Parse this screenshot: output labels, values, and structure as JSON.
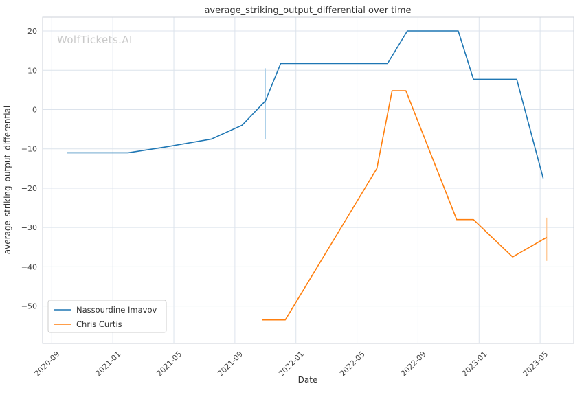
{
  "watermark": "WolfTickets.AI",
  "chart_data": {
    "type": "line",
    "title": "average_striking_output_differential over time",
    "xlabel": "Date",
    "ylabel": "average_striking_output_differential",
    "legend_position": "lower left",
    "grid": true,
    "colors": {
      "grid": "#dce3ec",
      "border": "#ccd2da",
      "tick_text": "#444444",
      "text": "#333333",
      "watermark": "#c9c9c9"
    },
    "x_ticks": [
      "2020-09",
      "2021-01",
      "2021-05",
      "2021-09",
      "2022-01",
      "2022-05",
      "2022-09",
      "2023-01",
      "2023-05"
    ],
    "y_ticks": [
      20,
      10,
      0,
      -10,
      -20,
      -30,
      -40,
      -50
    ],
    "ylim": [
      -59.5,
      23.5
    ],
    "xlim": [
      "2020-08-13",
      "2023-07-07"
    ],
    "series": [
      {
        "name": "Nassourdine Imavov",
        "color": "#1f77b4",
        "points": [
          [
            "2020-10-01",
            -11
          ],
          [
            "2021-02-01",
            -11
          ],
          [
            "2021-04-15",
            -9.5
          ],
          [
            "2021-07-15",
            -7.5
          ],
          [
            "2021-09-15",
            -4
          ],
          [
            "2021-11-01",
            2.2
          ],
          [
            "2021-12-01",
            11.7
          ],
          [
            "2022-07-01",
            11.7
          ],
          [
            "2022-08-10",
            20
          ],
          [
            "2022-11-20",
            20
          ],
          [
            "2022-12-20",
            7.7
          ],
          [
            "2023-03-15",
            7.7
          ],
          [
            "2023-05-07",
            -17.5
          ]
        ]
      },
      {
        "name": "Chris Curtis",
        "color": "#ff7f0e",
        "points": [
          [
            "2021-10-25",
            -53.5
          ],
          [
            "2021-12-10",
            -53.5
          ],
          [
            "2022-06-10",
            -15
          ],
          [
            "2022-07-10",
            4.8
          ],
          [
            "2022-08-07",
            4.8
          ],
          [
            "2022-11-17",
            -28
          ],
          [
            "2022-12-20",
            -28
          ],
          [
            "2023-03-07",
            -37.5
          ],
          [
            "2023-05-14",
            -32.5
          ]
        ]
      }
    ],
    "error_bars": [
      {
        "series": "Nassourdine Imavov",
        "date": "2021-11-01",
        "from": -7.5,
        "to": 10.5,
        "color": "#aacfe8"
      },
      {
        "series": "Chris Curtis",
        "date": "2023-05-14",
        "from": -38.5,
        "to": -27.5,
        "color": "#ffc690"
      }
    ]
  }
}
